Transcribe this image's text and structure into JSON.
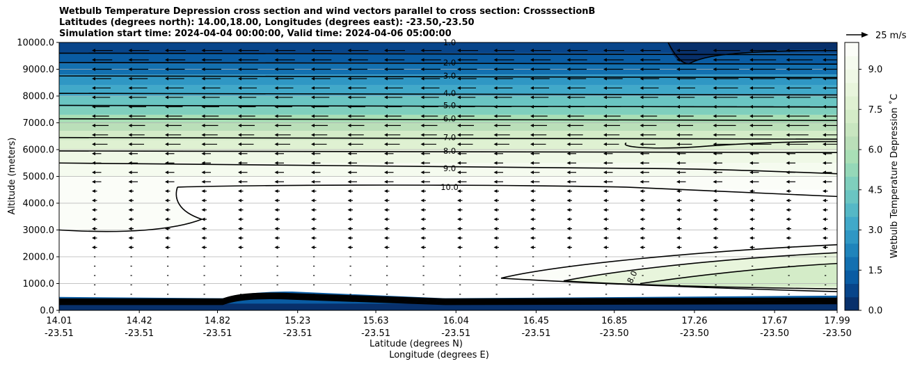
{
  "chart_data": {
    "type": "heatmap",
    "title_lines": [
      "Wetbulb Temperature Depression cross section and wind vectors parallel to cross section: CrosssectionB",
      "Latitudes (degrees north): 14.00,18.00, Longitudes (degrees east): -23.50,-23.50",
      "Simulation start time: 2024-04-04 00:00:00, Valid time: 2024-04-06 05:00:00"
    ],
    "ylabel": "Altitude (meters)",
    "xlabel_lat": "Latitude (degrees N)",
    "xlabel_lon": "Longitude (degrees E)",
    "ylim": [
      0,
      10000
    ],
    "y_ticks": [
      "0.0",
      "1000.0",
      "2000.0",
      "3000.0",
      "4000.0",
      "5000.0",
      "6000.0",
      "7000.0",
      "8000.0",
      "9000.0",
      "10000.0"
    ],
    "x_ticks": [
      {
        "lat": "14.01",
        "lon": "-23.51"
      },
      {
        "lat": "14.42",
        "lon": "-23.51"
      },
      {
        "lat": "14.82",
        "lon": "-23.51"
      },
      {
        "lat": "15.23",
        "lon": "-23.51"
      },
      {
        "lat": "15.63",
        "lon": "-23.51"
      },
      {
        "lat": "16.04",
        "lon": "-23.51"
      },
      {
        "lat": "16.45",
        "lon": "-23.51"
      },
      {
        "lat": "16.85",
        "lon": "-23.50"
      },
      {
        "lat": "17.26",
        "lon": "-23.50"
      },
      {
        "lat": "17.67",
        "lon": "-23.50"
      },
      {
        "lat": "17.99",
        "lon": "-23.50"
      }
    ],
    "xlim": [
      14.01,
      17.99
    ],
    "contour_labels": [
      "1.0",
      "2.0",
      "3.0",
      "4.0",
      "5.0",
      "6.0",
      "7.0",
      "8.0",
      "9.0",
      "10.0"
    ],
    "lower_contour_label": "8.0",
    "colorbar": {
      "label": "Wetbulb Temperature Depression ˚C",
      "range": [
        0,
        10
      ],
      "ticks": [
        "0.0",
        "1.5",
        "3.0",
        "4.5",
        "6.0",
        "7.5",
        "9.0"
      ]
    },
    "vector_key": "25 m/s",
    "grid": "horizontal"
  }
}
